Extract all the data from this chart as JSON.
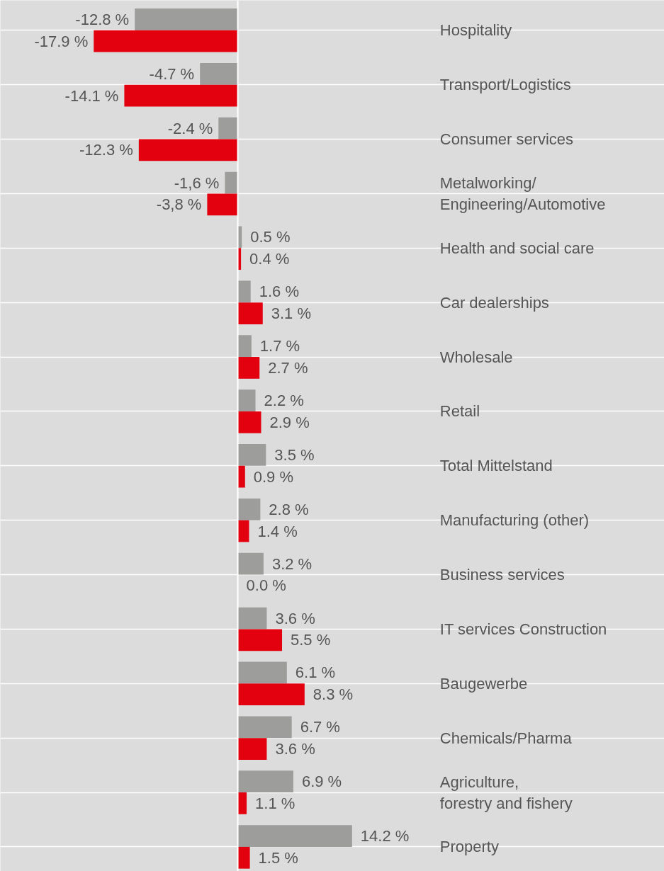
{
  "chart_data": {
    "type": "bar",
    "orientation": "horizontal",
    "xlim": [
      -29.5,
      53
    ],
    "categories": [
      "Hospitality",
      "Transport/Logistics",
      "Consumer services",
      "Metalworking/\nEngineering/Automotive",
      "Health and social care",
      "Car dealerships",
      "Wholesale",
      "Retail",
      "Total Mittelstand",
      "Manufacturing (other)",
      "Business services",
      "IT services Construction",
      "Baugewerbe",
      "Chemicals/Pharma",
      "Agriculture,\nforestry and fishery",
      "Property"
    ],
    "series": [
      {
        "color": "#9d9d9c",
        "values": [
          -12.8,
          -4.7,
          -2.4,
          -1.6,
          0.5,
          1.6,
          1.7,
          2.2,
          3.5,
          2.8,
          3.2,
          3.6,
          6.1,
          6.7,
          6.9,
          14.2
        ],
        "value_labels": [
          "-12.8 %",
          "-4.7 %",
          "-2.4 %",
          "-1,6 %",
          "0.5 %",
          "1.6 %",
          "1.7 %",
          "2.2 %",
          "3.5 %",
          "2.8 %",
          "3.2 %",
          "3.6 %",
          "6.1 %",
          "6.7 %",
          "6.9 %",
          "14.2 %"
        ]
      },
      {
        "color": "#e3000f",
        "values": [
          -17.9,
          -14.1,
          -12.3,
          -3.8,
          0.4,
          3.1,
          2.7,
          2.9,
          0.9,
          1.4,
          0.0,
          5.5,
          8.3,
          3.6,
          1.1,
          1.5
        ],
        "value_labels": [
          "-17.9 %",
          "-14.1 %",
          "-12.3 %",
          "-3,8 %",
          "0.4 %",
          "3.1 %",
          "2.7 %",
          "2.9 %",
          "0.9 %",
          "1.4 %",
          "0.0 %",
          "5.5 %",
          "8.3 %",
          "3.6 %",
          "1.1 %",
          "1.5 %"
        ]
      }
    ],
    "grid": "y"
  }
}
